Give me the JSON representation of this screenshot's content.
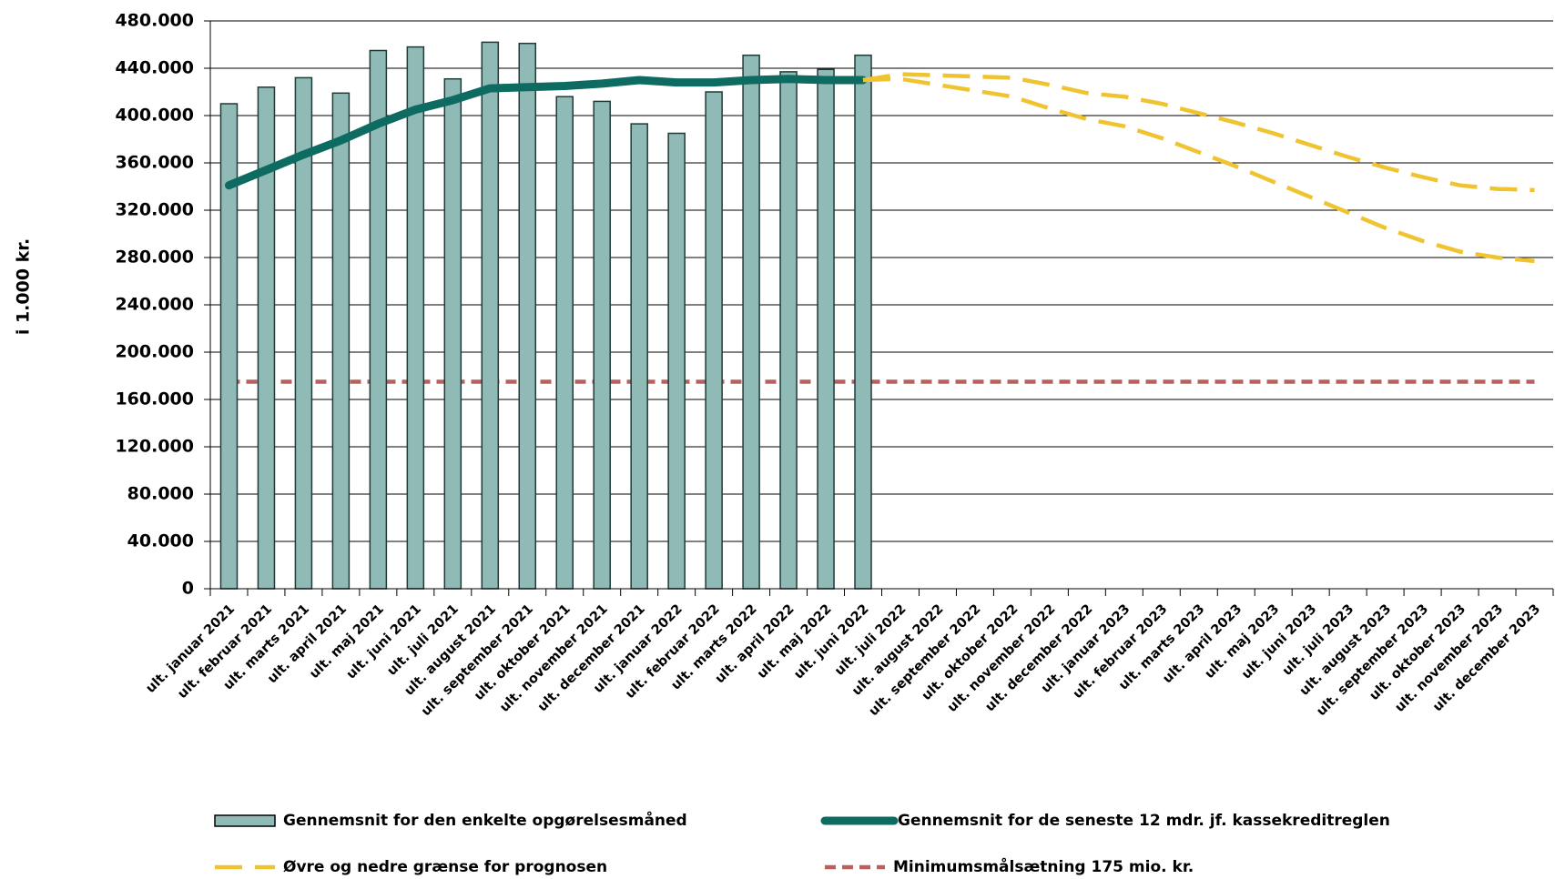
{
  "chart_data": {
    "type": "bar_line",
    "y_label": "i 1.000 kr.",
    "categories": [
      "ult. januar 2021",
      "ult. februar 2021",
      "ult. marts 2021",
      "ult. april 2021",
      "ult. maj 2021",
      "ult. juni 2021",
      "ult. juli 2021",
      "ult. august 2021",
      "ult. september 2021",
      "ult. oktober 2021",
      "ult. november 2021",
      "ult. december 2021",
      "ult. januar 2022",
      "ult. februar 2022",
      "ult. marts 2022",
      "ult. april 2022",
      "ult. maj 2022",
      "ult. juni 2022",
      "ult. juli 2022",
      "ult. august 2022",
      "ult. september 2022",
      "ult. oktober 2022",
      "ult. november 2022",
      "ult. december 2022",
      "ult. januar 2023",
      "ult. februar 2023",
      "ult. marts 2023",
      "ult. april 2023",
      "ult. maj 2023",
      "ult. juni 2023",
      "ult. juli 2023",
      "ult. august 2023",
      "ult. september 2023",
      "ult. oktober 2023",
      "ult. november 2023",
      "ult. december 2023"
    ],
    "series": [
      {
        "name": "Gennemsnit for den enkelte opgørelsesmåned",
        "kind": "bar",
        "color": "#8fbab5",
        "values": [
          410000,
          424000,
          432000,
          419000,
          455000,
          458000,
          431000,
          462000,
          461000,
          416000,
          412000,
          393000,
          385000,
          420000,
          451000,
          437000,
          439000,
          451000,
          null,
          null,
          null,
          null,
          null,
          null,
          null,
          null,
          null,
          null,
          null,
          null,
          null,
          null,
          null,
          null,
          null,
          null
        ]
      },
      {
        "name": "Gennemsnit for de seneste 12 mdr. jf. kassekreditreglen",
        "kind": "line",
        "color": "#0d6b62",
        "values": [
          341000,
          354000,
          367000,
          379000,
          393000,
          405000,
          413000,
          423000,
          424000,
          425000,
          427000,
          430000,
          428000,
          428000,
          430000,
          431000,
          430000,
          430000,
          null,
          null,
          null,
          null,
          null,
          null,
          null,
          null,
          null,
          null,
          null,
          null,
          null,
          null,
          null,
          null,
          null,
          null
        ]
      },
      {
        "name": "Øvre og nedre grænse for prognosen",
        "kind": "band-lines",
        "color": "#f0c330",
        "values": [
          null,
          null,
          null,
          null,
          null,
          null,
          null,
          null,
          null,
          null,
          null,
          null,
          null,
          null,
          null,
          null,
          null,
          430000,
          435000,
          434000,
          433000,
          432000,
          426000,
          419000,
          416000,
          410000,
          402000,
          394000,
          385000,
          375000,
          365000,
          356000,
          348000,
          341000,
          338000,
          337000
        ],
        "lower": [
          null,
          null,
          null,
          null,
          null,
          null,
          null,
          null,
          null,
          null,
          null,
          null,
          null,
          null,
          null,
          null,
          null,
          430000,
          431000,
          426000,
          421000,
          416000,
          406000,
          397000,
          391000,
          381000,
          369000,
          357000,
          344000,
          331000,
          318000,
          305000,
          294000,
          285000,
          280000,
          277000
        ]
      },
      {
        "name": "Minimumsmålsætning 175 mio. kr.",
        "kind": "dashed-line",
        "color": "#b9605c",
        "values": [
          175000,
          175000,
          175000,
          175000,
          175000,
          175000,
          175000,
          175000,
          175000,
          175000,
          175000,
          175000,
          175000,
          175000,
          175000,
          175000,
          175000,
          175000,
          175000,
          175000,
          175000,
          175000,
          175000,
          175000,
          175000,
          175000,
          175000,
          175000,
          175000,
          175000,
          175000,
          175000,
          175000,
          175000,
          175000,
          175000
        ]
      }
    ],
    "ylim": [
      0,
      480000
    ],
    "yticks": [
      0,
      {
        "value": 40000,
        "label": "40.000"
      },
      {
        "value": 80000,
        "label": "80.000"
      },
      {
        "value": 120000,
        "label": "120.000"
      },
      {
        "value": 160000,
        "label": "160.000"
      },
      {
        "value": 200000,
        "label": "200.000"
      },
      {
        "value": 240000,
        "label": "240.000"
      },
      {
        "value": 280000,
        "label": "280.000"
      },
      {
        "value": 320000,
        "label": "320.000"
      },
      {
        "value": 360000,
        "label": "360.000"
      },
      {
        "value": 400000,
        "label": "400.000"
      },
      {
        "value": 440000,
        "label": "440.000"
      },
      {
        "value": 480000,
        "label": "480.000"
      }
    ],
    "grid": true
  }
}
